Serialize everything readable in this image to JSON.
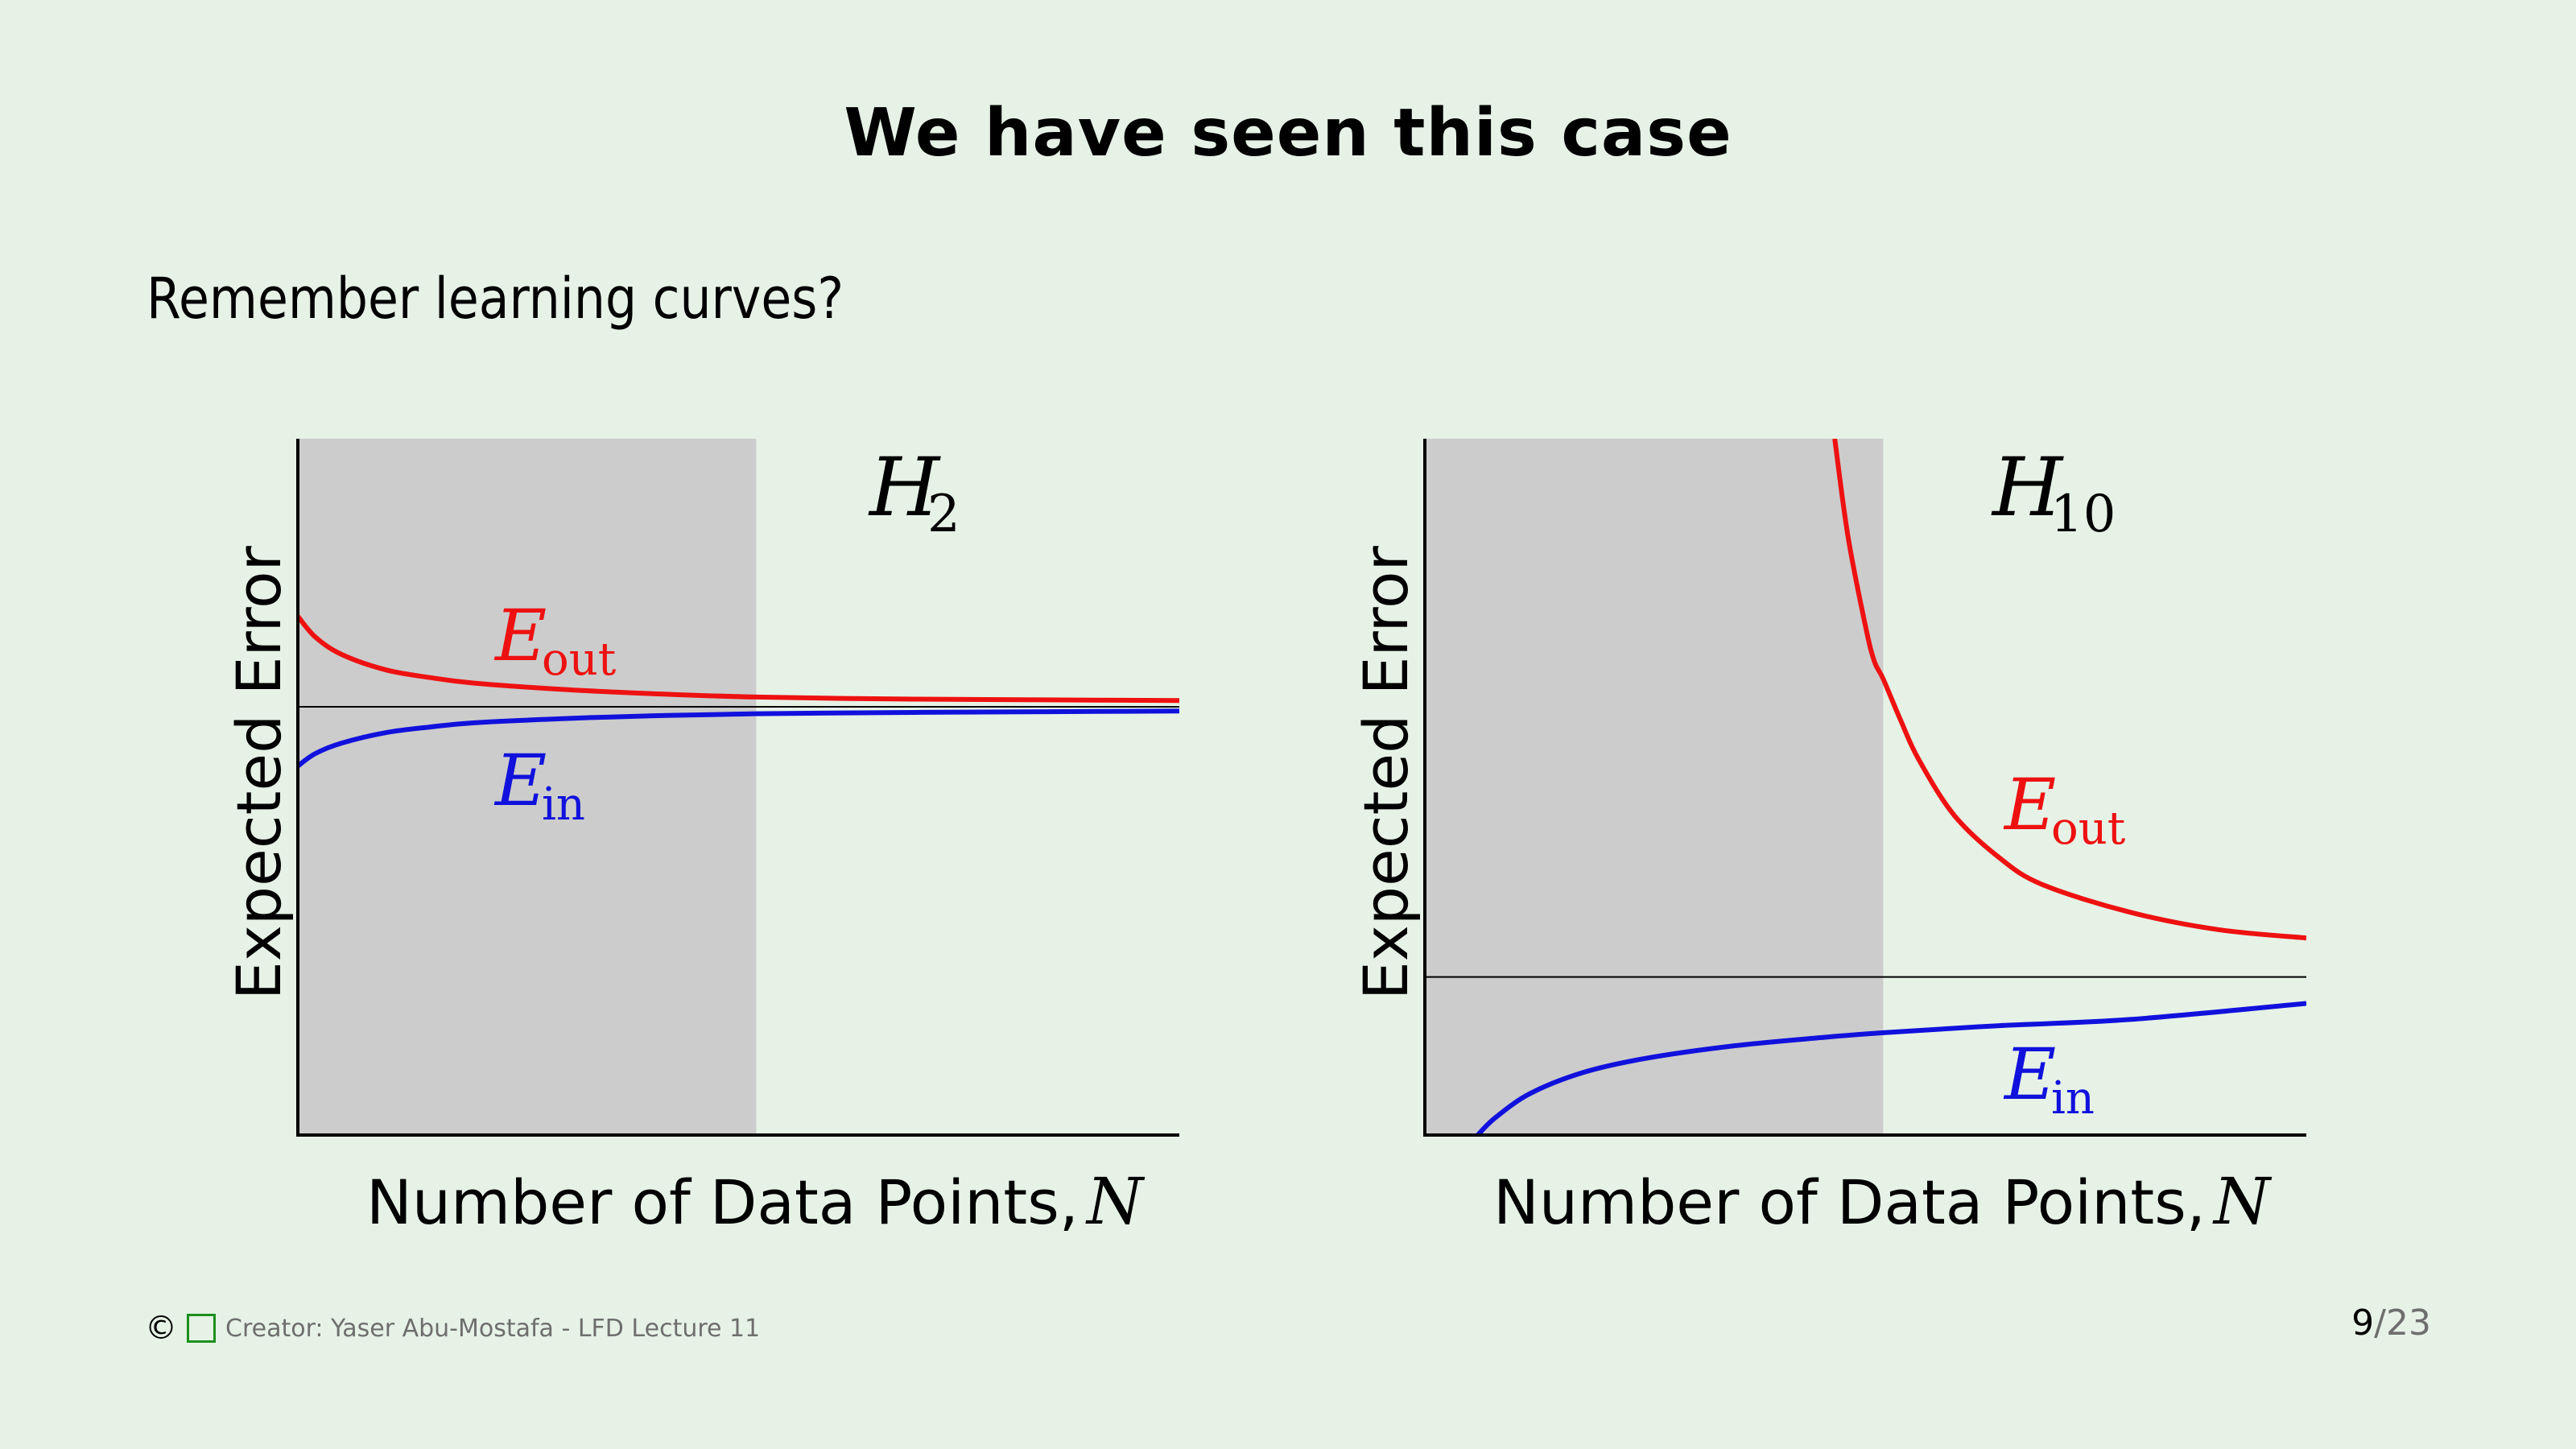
{
  "slide": {
    "title": "We have seen this case",
    "subtitle": "Remember learning curves?"
  },
  "footer": {
    "credit": "Creator: Yaser Abu-Mostafa - LFD Lecture 11",
    "page_current": "9",
    "page_separator": "/",
    "page_total": "23"
  },
  "colors": {
    "background": "#e6f2e6",
    "shade": "#cccccc",
    "eout": "#ee1111",
    "ein": "#1111dd",
    "axis": "#000000"
  },
  "chart_data": [
    {
      "type": "line",
      "panel_label": "H",
      "panel_label_sub": "2",
      "xlabel": "Number of Data Points, ",
      "xlabel_var": "N",
      "ylabel": "Expected Error",
      "xlim": [
        0,
        1
      ],
      "ylim": [
        0,
        1
      ],
      "shaded_region": [
        0,
        0.52
      ],
      "asymptote": 0.615,
      "series": [
        {
          "name": "E",
          "name_sub": "out",
          "color": "#ee1111",
          "x": [
            0,
            0.02,
            0.05,
            0.1,
            0.15,
            0.2,
            0.3,
            0.4,
            0.52,
            0.7,
            0.85,
            1.0
          ],
          "y": [
            0.745,
            0.715,
            0.69,
            0.668,
            0.657,
            0.649,
            0.64,
            0.634,
            0.629,
            0.626,
            0.625,
            0.624
          ]
        },
        {
          "name": "E",
          "name_sub": "in",
          "color": "#1111dd",
          "x": [
            0,
            0.02,
            0.05,
            0.1,
            0.15,
            0.2,
            0.3,
            0.4,
            0.52,
            0.7,
            0.85,
            1.0
          ],
          "y": [
            0.53,
            0.548,
            0.563,
            0.578,
            0.586,
            0.592,
            0.598,
            0.602,
            0.605,
            0.607,
            0.608,
            0.609
          ]
        }
      ]
    },
    {
      "type": "line",
      "panel_label": "H",
      "panel_label_sub": "10",
      "xlabel": "Number of Data Points, ",
      "xlabel_var": "N",
      "ylabel": "Expected Error",
      "xlim": [
        0,
        1
      ],
      "ylim": [
        0,
        1
      ],
      "shaded_region": [
        0,
        0.52
      ],
      "asymptote": 0.227,
      "series": [
        {
          "name": "E",
          "name_sub": "out",
          "color": "#ee1111",
          "x": [
            0.465,
            0.48,
            0.5,
            0.51,
            0.52,
            0.54,
            0.56,
            0.6,
            0.65,
            0.7,
            0.8,
            0.9,
            1.0
          ],
          "y": [
            1.0,
            0.86,
            0.73,
            0.68,
            0.655,
            0.595,
            0.54,
            0.46,
            0.4,
            0.36,
            0.32,
            0.295,
            0.283
          ]
        },
        {
          "name": "E",
          "name_sub": "in",
          "color": "#1111dd",
          "x": [
            0.06,
            0.08,
            0.12,
            0.18,
            0.25,
            0.35,
            0.45,
            0.52,
            0.65,
            0.8,
            1.0
          ],
          "y": [
            0.0,
            0.025,
            0.06,
            0.09,
            0.11,
            0.128,
            0.14,
            0.147,
            0.157,
            0.166,
            0.189
          ]
        }
      ]
    }
  ]
}
